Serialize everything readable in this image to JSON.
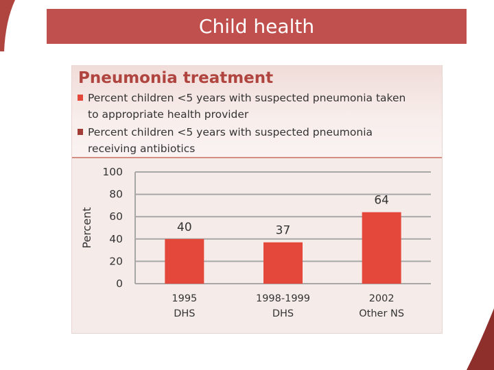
{
  "slide": {
    "title": "Child health"
  },
  "colors": {
    "title_bar": "#c0504d",
    "accent_dark": "#b0443f",
    "bar": "#e4483a",
    "legend_1": "#e4483a",
    "legend_2": "#a23c36"
  },
  "chart_data": {
    "type": "bar",
    "title": "Pneumonia treatment",
    "legend": [
      "Percent children <5 years with suspected pneumonia taken to appropriate health provider",
      "Percent children <5 years with suspected pneumonia receiving antibiotics"
    ],
    "legend_lines": [
      [
        "Percent children <5 years with suspected pneumonia taken",
        "to appropriate health provider"
      ],
      [
        "Percent children <5 years with suspected pneumonia",
        "receiving antibiotics"
      ]
    ],
    "ylabel": "Percent",
    "ylim": [
      0,
      100
    ],
    "yticks": [
      0,
      20,
      40,
      60,
      80,
      100
    ],
    "categories": [
      [
        "1995",
        "DHS"
      ],
      [
        "1998-1999",
        "DHS"
      ],
      [
        "2002",
        "Other NS"
      ]
    ],
    "values": [
      40,
      37,
      64
    ],
    "grid": true
  }
}
